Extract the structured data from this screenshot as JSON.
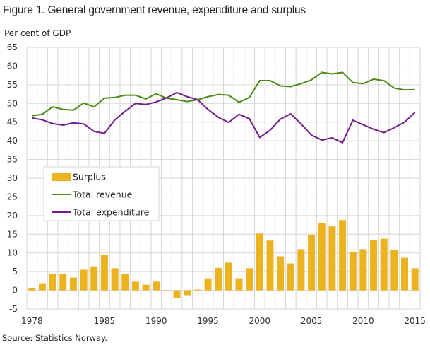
{
  "title": "Figure 1. General government revenue, expenditure and surplus",
  "source": "Source: Statistics Norway.",
  "chart_data": {
    "type": "bar+line",
    "ylabel": "Per cent of GDP",
    "ylim": [
      -5,
      65
    ],
    "yticks": [
      -5,
      0,
      5,
      10,
      15,
      20,
      25,
      30,
      35,
      40,
      45,
      50,
      55,
      60,
      65
    ],
    "xtick_labels": [
      "1978",
      "1985",
      "1990",
      "1995",
      "2000",
      "2005",
      "2010",
      "2015"
    ],
    "grid": true,
    "legend_position": "middle-left",
    "x": [
      1978,
      1979,
      1980,
      1981,
      1982,
      1983,
      1984,
      1985,
      1986,
      1987,
      1988,
      1989,
      1990,
      1991,
      1992,
      1993,
      1994,
      1995,
      1996,
      1997,
      1998,
      1999,
      2000,
      2001,
      2002,
      2003,
      2004,
      2005,
      2006,
      2007,
      2008,
      2009,
      2010,
      2011,
      2012,
      2013,
      2014,
      2015
    ],
    "series": [
      {
        "name": "Surplus",
        "type": "bar",
        "color": "#ebb31f",
        "values": [
          0.6,
          1.7,
          4.3,
          4.3,
          3.4,
          5.5,
          6.4,
          9.5,
          5.9,
          4.3,
          2.3,
          1.5,
          2.3,
          -0.1,
          -2.1,
          -1.3,
          0.2,
          3.2,
          6.0,
          7.4,
          3.2,
          5.9,
          15.2,
          13.3,
          9.1,
          7.2,
          11.0,
          14.8,
          18.0,
          17.1,
          18.8,
          10.2,
          11.0,
          13.5,
          13.8,
          10.8,
          8.7,
          5.9
        ]
      },
      {
        "name": "Total revenue",
        "type": "line",
        "color": "#4a8c12",
        "values": [
          46.7,
          47.1,
          49.1,
          48.4,
          48.2,
          50.1,
          49.1,
          51.4,
          51.6,
          52.2,
          52.2,
          51.2,
          52.6,
          51.4,
          51.0,
          50.5,
          51.0,
          51.8,
          52.4,
          52.2,
          50.3,
          51.6,
          56.1,
          56.1,
          54.7,
          54.5,
          55.3,
          56.3,
          58.3,
          57.9,
          58.3,
          55.6,
          55.3,
          56.5,
          56.1,
          54.1,
          53.6,
          53.7
        ]
      },
      {
        "name": "Total expenditure",
        "type": "line",
        "color": "#731a8c",
        "values": [
          46.1,
          45.6,
          44.6,
          44.2,
          44.8,
          44.5,
          42.5,
          42.0,
          45.6,
          47.9,
          50.0,
          49.7,
          50.4,
          51.5,
          52.9,
          51.8,
          51.0,
          48.4,
          46.3,
          44.9,
          47.1,
          45.9,
          40.9,
          42.8,
          45.8,
          47.2,
          44.5,
          41.5,
          40.2,
          40.8,
          39.5,
          45.5,
          44.3,
          43.1,
          42.2,
          43.5,
          45.0,
          47.6
        ]
      }
    ]
  }
}
